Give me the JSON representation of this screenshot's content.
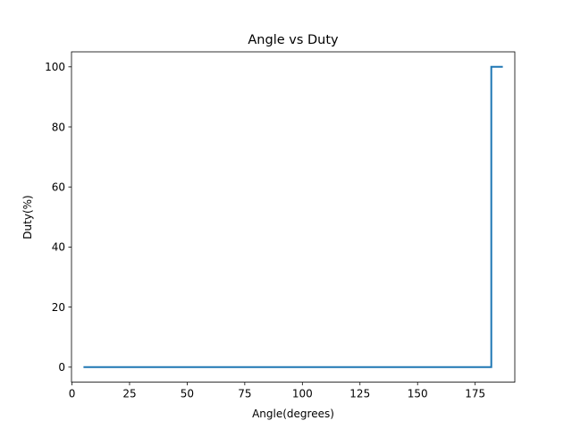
{
  "chart_data": {
    "type": "line",
    "title": "Angle vs Duty",
    "xlabel": "Angle(degrees)",
    "ylabel": "Duty(%)",
    "xlim": [
      -0.2,
      192.2
    ],
    "ylim": [
      -5,
      105
    ],
    "xticks": [
      0,
      25,
      50,
      75,
      100,
      125,
      150,
      175
    ],
    "yticks": [
      0,
      20,
      40,
      60,
      80,
      100
    ],
    "grid": false,
    "series": [
      {
        "color": "#1f77b4",
        "x": [
          5,
          120,
          182,
          182,
          187
        ],
        "y": [
          0,
          0,
          0,
          100,
          100
        ]
      }
    ]
  }
}
